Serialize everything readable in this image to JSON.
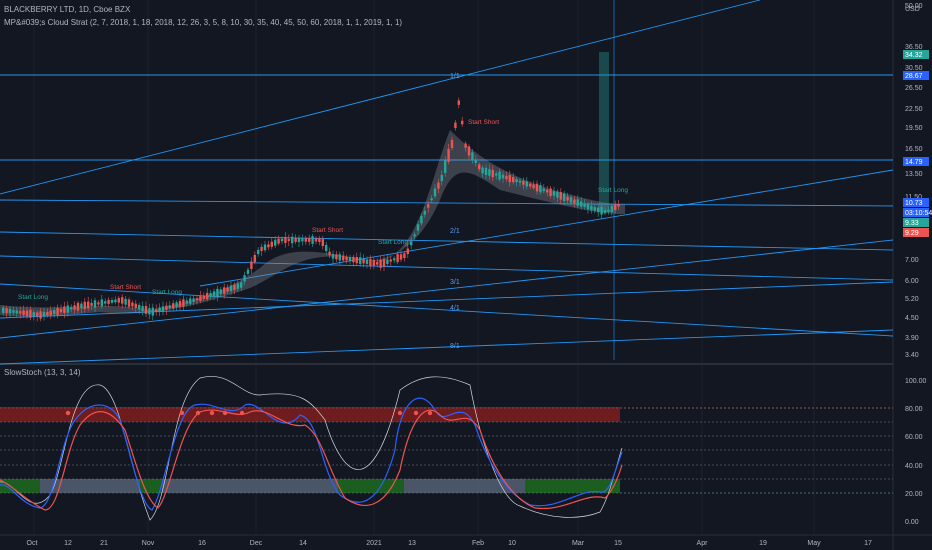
{
  "header": {
    "symbol_line": "BLACKBERRY LTD, 1D, Cboe BZX",
    "indicator_line": "MP&#039;s Cloud Strat (2, 7, 2018, 1, 18, 2018, 12, 26, 3, 5, 8, 10, 30, 35, 40, 45, 50, 60, 2018, 1, 1, 2019, 1, 1)"
  },
  "price_axis": {
    "currency": "USD",
    "ticks": [
      "50.00",
      "36.50",
      "30.50",
      "26.50",
      "22.50",
      "19.50",
      "16.50",
      "13.50",
      "11.50",
      "10.00",
      "7.00",
      "6.00",
      "5.20",
      "4.50",
      "3.90",
      "3.40"
    ]
  },
  "price_tags": [
    {
      "label": "34.32",
      "color": "#26a69a"
    },
    {
      "label": "28.67",
      "color": "#2962ff"
    },
    {
      "label": "14.79",
      "color": "#2962ff"
    },
    {
      "label": "10.73",
      "color": "#2962ff"
    },
    {
      "label": "03:10:54",
      "color": "#2962ff"
    },
    {
      "label": "9.33",
      "color": "#26a69a"
    },
    {
      "label": "9.29",
      "color": "#ef5350"
    }
  ],
  "stoch_axis": {
    "ticks": [
      "100.00",
      "80.00",
      "60.00",
      "40.00",
      "20.00",
      "0.00"
    ]
  },
  "time_axis": {
    "ticks": [
      "Oct",
      "12",
      "21",
      "Nov",
      "16",
      "Dec",
      "14",
      "2021",
      "13",
      "Feb",
      "10",
      "Mar",
      "15",
      "Apr",
      "19",
      "May",
      "17"
    ]
  },
  "stoch_legend": "SlowStoch (13, 3, 14)",
  "gann_ratios": [
    "1/1",
    "2/1",
    "3/1",
    "4/1",
    "8/1"
  ],
  "annotations": {
    "start_short": "Start Short",
    "start_long": "Start Long"
  },
  "colors": {
    "background": "#131722",
    "gridline": "#2a2e39",
    "up": "#26a69a",
    "down": "#ef5350",
    "gann_line": "#2196f3",
    "stoch_k": "#2962ff",
    "stoch_d": "#ef5350",
    "overbought_band": "#7f1d1d",
    "oversold_band": "#1b5e20"
  }
}
